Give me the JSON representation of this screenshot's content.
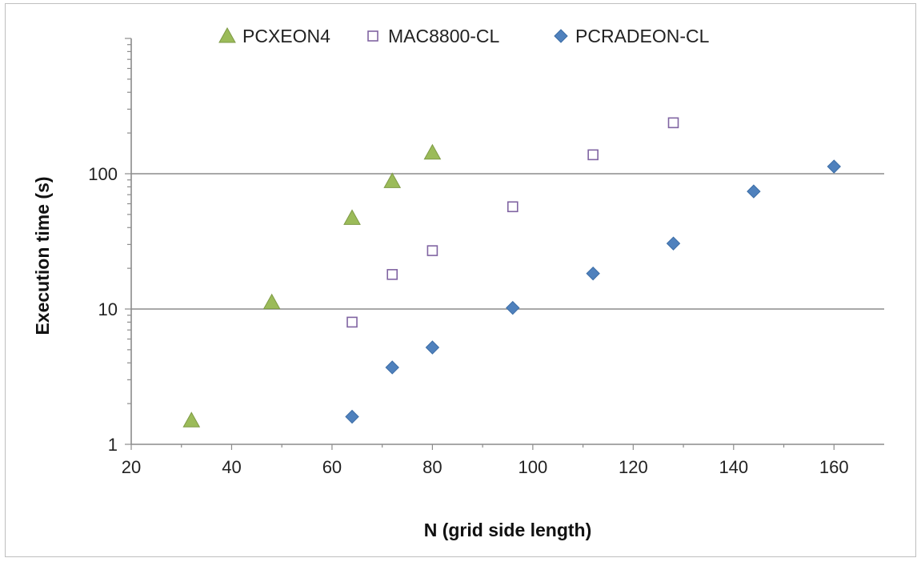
{
  "chart_data": {
    "type": "scatter",
    "title": "",
    "xlabel": "N (grid side length)",
    "ylabel": "Execution time (s)",
    "xlim": [
      20,
      170
    ],
    "ylim": [
      1,
      1000
    ],
    "yscale": "log",
    "x_ticks": [
      "20",
      "40",
      "60",
      "80",
      "100",
      "120",
      "140",
      "160"
    ],
    "x_tick_values": [
      20,
      40,
      60,
      80,
      100,
      120,
      140,
      160
    ],
    "y_ticks": [
      "1",
      "10",
      "100"
    ],
    "y_tick_values": [
      1,
      10,
      100
    ],
    "grid": "horizontal major",
    "legend_position": "top",
    "series": [
      {
        "name": "PCXEON4",
        "marker": "triangle",
        "color": "#9BBB59",
        "points": [
          {
            "x": 32,
            "y": 1.5
          },
          {
            "x": 48,
            "y": 11.2
          },
          {
            "x": 64,
            "y": 47
          },
          {
            "x": 72,
            "y": 88
          },
          {
            "x": 80,
            "y": 143
          }
        ]
      },
      {
        "name": "MAC8800-CL",
        "marker": "square-open",
        "color": "#8064A2",
        "points": [
          {
            "x": 64,
            "y": 8
          },
          {
            "x": 72,
            "y": 18
          },
          {
            "x": 80,
            "y": 27
          },
          {
            "x": 96,
            "y": 57
          },
          {
            "x": 112,
            "y": 138
          },
          {
            "x": 128,
            "y": 238
          }
        ]
      },
      {
        "name": "PCRADEON-CL",
        "marker": "diamond",
        "color": "#4F81BD",
        "points": [
          {
            "x": 64,
            "y": 1.6
          },
          {
            "x": 72,
            "y": 3.7
          },
          {
            "x": 80,
            "y": 5.2
          },
          {
            "x": 96,
            "y": 10.2
          },
          {
            "x": 112,
            "y": 18.3
          },
          {
            "x": 128,
            "y": 30.5
          },
          {
            "x": 144,
            "y": 74
          },
          {
            "x": 160,
            "y": 113
          }
        ]
      }
    ]
  }
}
